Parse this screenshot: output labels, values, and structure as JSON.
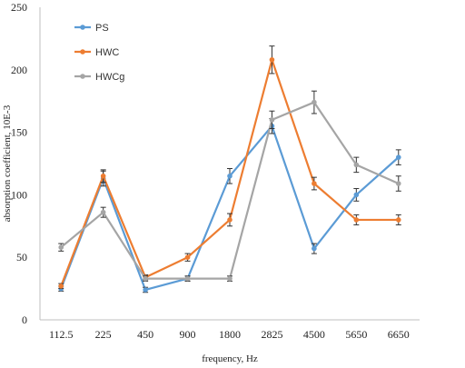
{
  "chart_data": {
    "type": "line",
    "title": "",
    "xlabel": "frequency, Hz",
    "ylabel": "absorption coefficient, 10Е-3",
    "categories": [
      "112.5",
      "225",
      "450",
      "900",
      "1800",
      "2825",
      "4500",
      "5650",
      "6650"
    ],
    "ylim": [
      0,
      250
    ],
    "yticks": [
      0,
      50,
      100,
      150,
      200,
      250
    ],
    "grid": false,
    "legend_position": "top-left",
    "series": [
      {
        "name": "PS",
        "color": "#5b9bd5",
        "values": [
          25,
          113,
          24,
          33,
          115,
          155,
          57,
          100,
          130
        ],
        "errors": [
          2,
          6,
          2,
          2,
          6,
          6,
          4,
          5,
          6
        ]
      },
      {
        "name": "HWC",
        "color": "#ed7d31",
        "values": [
          27,
          115,
          34,
          50,
          80,
          208,
          109,
          80,
          80
        ],
        "errors": [
          2,
          5,
          2,
          3,
          5,
          11,
          5,
          4,
          4
        ]
      },
      {
        "name": "HWCg",
        "color": "#a5a5a5",
        "values": [
          58,
          86,
          33,
          33,
          33,
          160,
          174,
          124,
          109
        ],
        "errors": [
          3,
          4,
          2,
          2,
          2,
          7,
          9,
          6,
          6
        ]
      }
    ]
  }
}
